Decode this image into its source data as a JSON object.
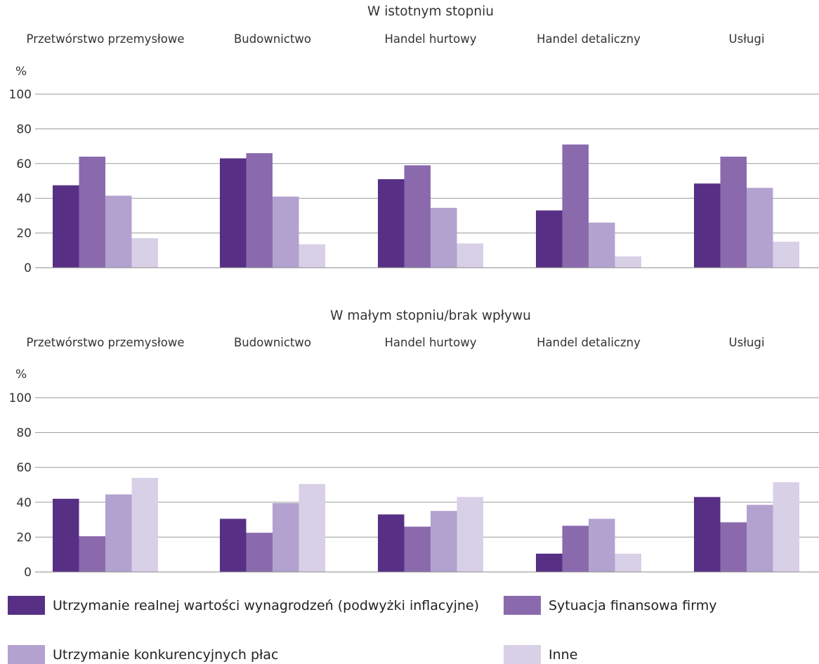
{
  "chart_data": [
    {
      "type": "bar",
      "title": "W istotnym stopniu",
      "ylabel": "%",
      "ylim": [
        0,
        100
      ],
      "yticks": [
        0,
        20,
        40,
        60,
        80,
        100
      ],
      "grid": true,
      "categories": [
        "Przetwórstwo przemysłowe",
        "Budownictwo",
        "Handel hurtowy",
        "Handel detaliczny",
        "Usługi"
      ],
      "series": [
        {
          "name": "Utrzymanie realnej wartości wynagrodzeń (podwyżki inflacyjne)",
          "values": [
            47.5,
            63,
            51,
            33,
            48.5
          ]
        },
        {
          "name": "Sytuacja finansowa firmy",
          "values": [
            64,
            66,
            59,
            71,
            64
          ]
        },
        {
          "name": "Utrzymanie konkurencyjnych płac",
          "values": [
            41.5,
            41,
            34.5,
            26,
            46
          ]
        },
        {
          "name": "Inne",
          "values": [
            17,
            13.5,
            14,
            6.5,
            15
          ]
        }
      ]
    },
    {
      "type": "bar",
      "title": "W małym stopniu/brak wpływu",
      "ylabel": "%",
      "ylim": [
        0,
        100
      ],
      "yticks": [
        0,
        20,
        40,
        60,
        80,
        100
      ],
      "grid": true,
      "categories": [
        "Przetwórstwo przemysłowe",
        "Budownictwo",
        "Handel hurtowy",
        "Handel detaliczny",
        "Usługi"
      ],
      "series": [
        {
          "name": "Utrzymanie realnej wartości wynagrodzeń (podwyżki inflacyjne)",
          "values": [
            42,
            30.5,
            33,
            10.5,
            43
          ]
        },
        {
          "name": "Sytuacja finansowa firmy",
          "values": [
            20.5,
            22.5,
            26,
            26.5,
            28.5
          ]
        },
        {
          "name": "Utrzymanie konkurencyjnych płac",
          "values": [
            44.5,
            39.5,
            35,
            30.5,
            38.5
          ]
        },
        {
          "name": "Inne",
          "values": [
            54,
            50.5,
            43,
            10.5,
            51.5
          ]
        }
      ]
    }
  ],
  "colors": [
    "#573085",
    "#8a6aad",
    "#b3a2cf",
    "#d8d0e7"
  ],
  "legend": {
    "items": [
      {
        "label": "Utrzymanie realnej wartości wynagrodzeń (podwyżki inflacyjne)",
        "color": "#573085"
      },
      {
        "label": "Sytuacja finansowa firmy",
        "color": "#8a6aad"
      },
      {
        "label": "Utrzymanie konkurencyjnych płac",
        "color": "#b3a2cf"
      },
      {
        "label": "Inne",
        "color": "#d8d0e7"
      }
    ]
  }
}
